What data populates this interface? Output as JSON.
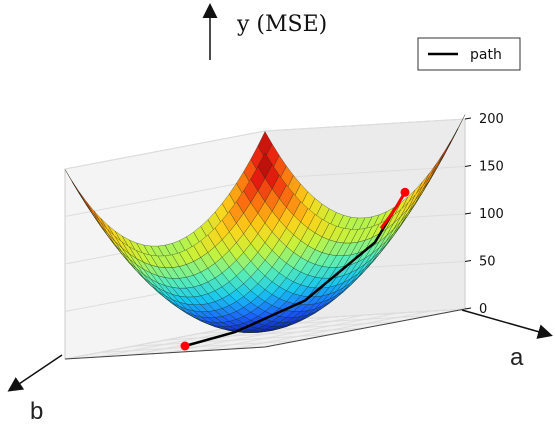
{
  "chart_data": {
    "type": "surface3d",
    "title": "",
    "axes": {
      "y_label": "y (MSE)",
      "a_label": "a",
      "b_label": "b",
      "z_ticks": [
        0,
        50,
        100,
        150,
        200
      ],
      "z_range": [
        0,
        200
      ]
    },
    "grid": true,
    "legend": {
      "position": "top-right",
      "entries": [
        "path"
      ]
    },
    "series": [
      {
        "name": "path",
        "kind": "line",
        "color": "#000000",
        "points": [
          [
            0.95,
            0.25,
            128
          ],
          [
            0.85,
            0.3,
            80
          ],
          [
            0.6,
            0.4,
            30
          ],
          [
            0.35,
            0.5,
            8
          ],
          [
            0.15,
            0.55,
            2
          ]
        ]
      },
      {
        "kind": "gradient-steps",
        "color": "#ff0000",
        "points": [
          [
            0.95,
            0.25,
            128
          ],
          [
            0.92,
            0.26,
            115
          ],
          [
            0.89,
            0.27,
            104
          ],
          [
            0.86,
            0.28,
            94
          ],
          [
            0.15,
            0.55,
            2
          ]
        ]
      }
    ],
    "colormap": [
      "#0a1aa8",
      "#1c63ff",
      "#18c7f0",
      "#5ff0b0",
      "#c8f23a",
      "#ffd21a",
      "#ff7a10",
      "#e81d10",
      "#a40a0a"
    ]
  }
}
